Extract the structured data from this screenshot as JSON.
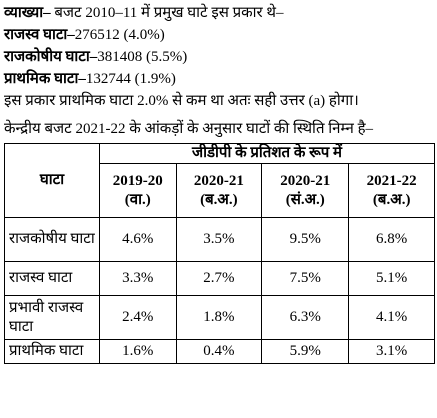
{
  "explanation": {
    "label": "व्याख्या–",
    "text": "बजट 2010–11 में प्रमुख घाटे इस प्रकार थे–"
  },
  "deficits": [
    {
      "label": "राजस्व घाटा–",
      "value": "276512 (4.0%)"
    },
    {
      "label": "राजकोषीय घाटा–",
      "value": "381408 (5.5%)"
    },
    {
      "label": "प्राथमिक घाटा–",
      "value": "132744 (1.9%)"
    }
  ],
  "conclusion": "इस प्रकार प्राथमिक घाटा 2.0% से कम था अतः सही उत्तर (a) होगा।",
  "intro": "केन्द्रीय बजट 2021-22 के आंकड़ों के अनुसार घाटों की स्थिति निम्न है–",
  "table": {
    "header": {
      "first": "घाटा",
      "group": "जीडीपी के प्रतिशत के रूप में"
    },
    "columns": [
      "2019-20 (वा.)",
      "2020-21 (ब.अ.)",
      "2020-21 (सं.अ.)",
      "2021-22 (ब.अ.)"
    ],
    "rows": [
      [
        "राजकोषीय घाटा",
        "4.6%",
        "3.5%",
        "9.5%",
        "6.8%"
      ],
      [
        "राजस्व घाटा",
        "3.3%",
        "2.7%",
        "7.5%",
        "5.1%"
      ],
      [
        "प्रभावी राजस्व घाटा",
        "2.4%",
        "1.8%",
        "6.3%",
        "4.1%"
      ],
      [
        "प्राथमिक घाटा",
        "1.6%",
        "0.4%",
        "5.9%",
        "3.1%"
      ]
    ]
  }
}
